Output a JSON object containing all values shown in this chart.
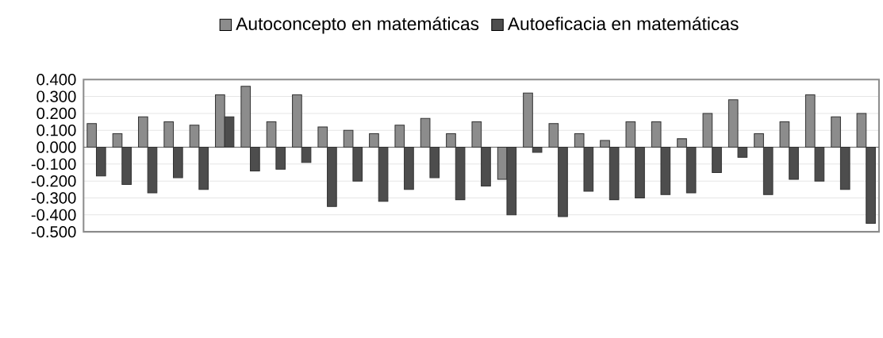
{
  "chart_data": {
    "type": "bar",
    "categories": [
      null,
      null,
      null,
      null,
      null,
      null,
      null,
      null,
      null,
      null,
      null,
      null,
      null,
      null,
      null,
      null,
      null,
      null,
      null,
      null,
      null,
      null,
      null,
      null,
      null,
      null,
      null,
      null,
      null,
      null,
      null
    ],
    "series": [
      {
        "name": "Autoconcepto en matemáticas",
        "color": "#8c8c8c",
        "values": [
          0.14,
          0.08,
          0.18,
          0.15,
          0.13,
          0.31,
          0.36,
          0.15,
          0.31,
          0.12,
          0.1,
          0.08,
          0.13,
          0.17,
          0.08,
          0.15,
          -0.19,
          0.32,
          0.14,
          0.08,
          0.04,
          0.15,
          0.15,
          0.05,
          0.2,
          0.28,
          0.08,
          0.15,
          0.31,
          0.18,
          0.2
        ]
      },
      {
        "name": "Autoeficacia en matemáticas",
        "color": "#4d4d4d",
        "values": [
          -0.17,
          -0.22,
          -0.27,
          -0.18,
          -0.25,
          0.18,
          -0.14,
          -0.13,
          -0.09,
          -0.35,
          -0.2,
          -0.32,
          -0.25,
          -0.18,
          -0.31,
          -0.23,
          -0.4,
          -0.03,
          -0.41,
          -0.26,
          -0.31,
          -0.3,
          -0.28,
          -0.27,
          -0.15,
          -0.06,
          -0.28,
          -0.19,
          -0.2,
          -0.25,
          -0.45
        ]
      }
    ],
    "ylim": [
      -0.5,
      0.4
    ],
    "yticks": [
      {
        "value": 0.4,
        "label": "0.400"
      },
      {
        "value": 0.3,
        "label": "0.300"
      },
      {
        "value": 0.2,
        "label": "0.200"
      },
      {
        "value": 0.1,
        "label": "0.100"
      },
      {
        "value": 0.0,
        "label": "0.000"
      },
      {
        "value": -0.1,
        "label": "-0.100"
      },
      {
        "value": -0.2,
        "label": "-0.200"
      },
      {
        "value": -0.3,
        "label": "-0.300"
      },
      {
        "value": -0.4,
        "label": "-0.400"
      },
      {
        "value": -0.5,
        "label": "-0.500"
      }
    ],
    "grid": "y",
    "legend": "top"
  }
}
